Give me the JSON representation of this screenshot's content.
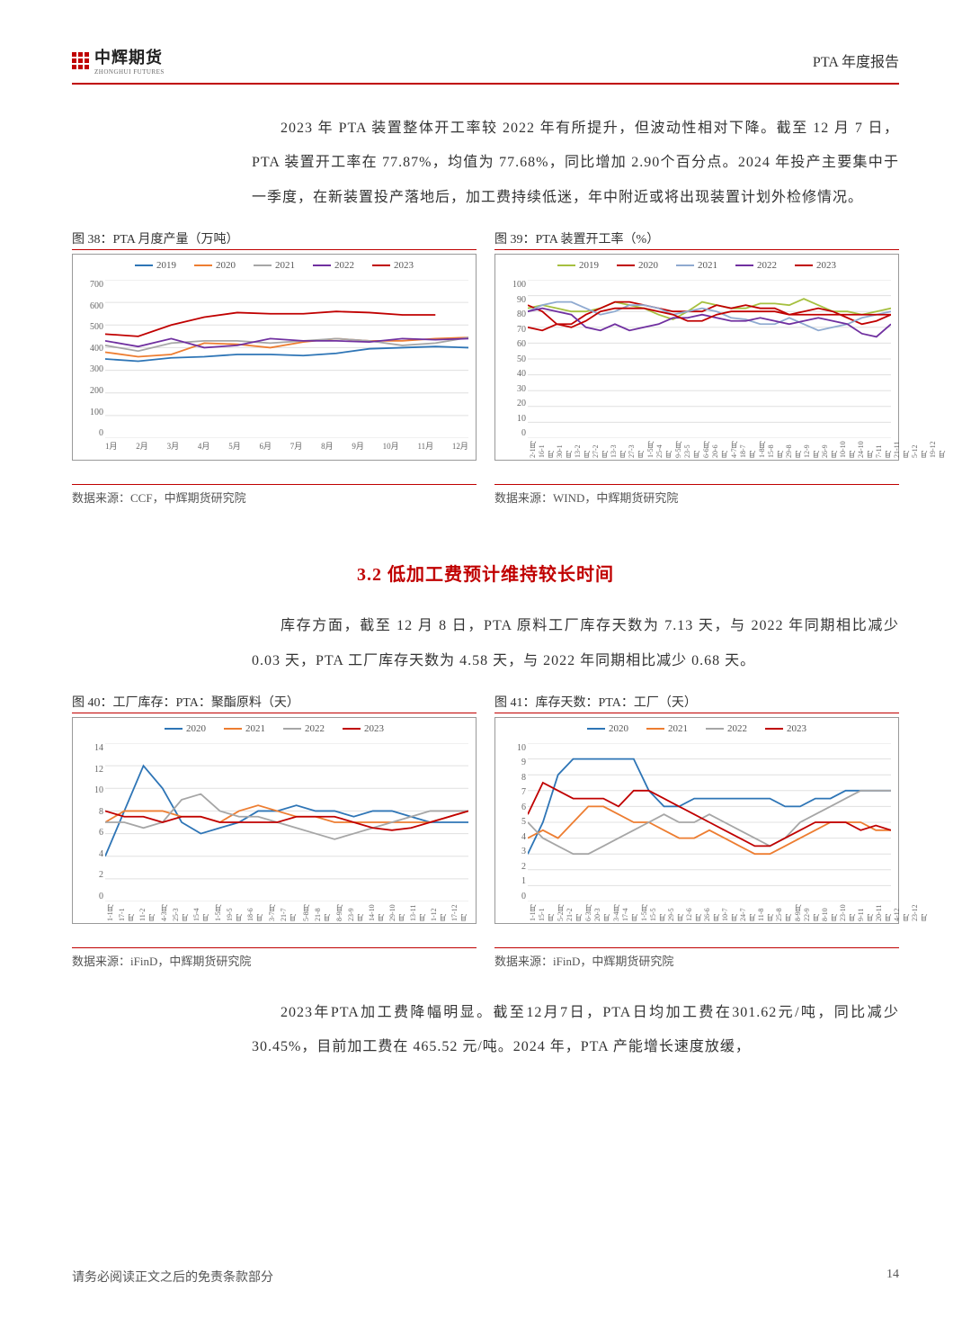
{
  "header": {
    "logo_cn": "中辉期货",
    "logo_en": "ZHONGHUI FUTURES",
    "doc_title": "PTA 年度报告"
  },
  "para1": "2023 年 PTA 装置整体开工率较 2022 年有所提升，但波动性相对下降。截至 12 月 7 日，PTA 装置开工率在 77.87%，均值为 77.68%，同比增加 2.90个百分点。2024 年投产主要集中于一季度，在新装置投产落地后，加工费持续低迷，年中附近或将出现装置计划外检修情况。",
  "section_heading": "3.2  低加工费预计维持较长时间",
  "para2": "库存方面，截至 12 月 8 日，PTA 原料工厂库存天数为 7.13 天，与 2022 年同期相比减少 0.03 天，PTA 工厂库存天数为 4.58 天，与 2022 年同期相比减少 0.68 天。",
  "para3": "2023年PTA加工费降幅明显。截至12月7日，PTA日均加工费在301.62元/吨，同比减少 30.45%，目前加工费在 465.52 元/吨。2024 年，PTA 产能增长速度放缓，",
  "chart38": {
    "title": "图 38：PTA 月度产量（万吨）",
    "source": "数据来源：CCF，中辉期货研究院",
    "type": "line",
    "legend": [
      "2019",
      "2020",
      "2021",
      "2022",
      "2023"
    ],
    "colors": [
      "#2e75b6",
      "#ed7d31",
      "#a6a6a6",
      "#7030a0",
      "#c00000"
    ],
    "ylim": [
      0,
      700
    ],
    "ytick_step": 100,
    "x_labels": [
      "1月",
      "2月",
      "3月",
      "4月",
      "5月",
      "6月",
      "7月",
      "8月",
      "9月",
      "10月",
      "11月",
      "12月"
    ],
    "series": {
      "2019": [
        350,
        340,
        355,
        360,
        370,
        370,
        365,
        375,
        395,
        400,
        405,
        400
      ],
      "2020": [
        380,
        360,
        370,
        420,
        415,
        400,
        425,
        440,
        430,
        430,
        440,
        445
      ],
      "2021": [
        410,
        385,
        420,
        430,
        430,
        420,
        430,
        440,
        430,
        410,
        420,
        445
      ],
      "2022": [
        430,
        405,
        440,
        400,
        410,
        440,
        430,
        430,
        425,
        440,
        435,
        440
      ],
      "2023": [
        460,
        450,
        500,
        535,
        555,
        550,
        550,
        560,
        555,
        545,
        545,
        null
      ]
    },
    "background_color": "#ffffff",
    "grid_color": "#e0e0e0",
    "label_fontsize": 10
  },
  "chart39": {
    "title": "图 39：PTA 装置开工率（%）",
    "source": "数据来源：WIND，中辉期货研究院",
    "type": "line",
    "legend": [
      "2019",
      "2020",
      "2021",
      "2022",
      "2023"
    ],
    "colors": [
      "#a6c040",
      "#c00000",
      "#8faad0",
      "#7030a0",
      "#c00000"
    ],
    "ylim": [
      0,
      100
    ],
    "ytick_step": 10,
    "x_labels": [
      "2-1月",
      "16-1月",
      "30-1月",
      "13-2月",
      "27-2月",
      "13-3月",
      "27-3月",
      "1-5月",
      "25-4月",
      "9-5月",
      "23-5月",
      "6-6月",
      "20-6月",
      "4-7月",
      "18-7月",
      "1-8月",
      "15-8月",
      "29-8月",
      "12-9月",
      "26-9月",
      "10-10月",
      "24-10月",
      "7-11月",
      "21-11月",
      "5-12月",
      "19-12月"
    ],
    "series": {
      "2019": [
        82,
        84,
        82,
        80,
        80,
        82,
        86,
        84,
        82,
        78,
        75,
        80,
        86,
        84,
        82,
        82,
        85,
        85,
        84,
        88,
        84,
        80,
        80,
        78,
        80,
        82
      ],
      "2020": [
        84,
        80,
        72,
        72,
        78,
        82,
        86,
        86,
        84,
        82,
        80,
        80,
        80,
        84,
        82,
        84,
        82,
        82,
        78,
        80,
        82,
        80,
        76,
        72,
        74,
        78
      ],
      "2021": [
        80,
        84,
        86,
        86,
        82,
        78,
        80,
        84,
        84,
        82,
        78,
        80,
        82,
        80,
        76,
        75,
        72,
        72,
        76,
        72,
        68,
        70,
        72,
        76,
        78,
        80
      ],
      "2022": [
        80,
        82,
        80,
        78,
        70,
        68,
        72,
        68,
        70,
        72,
        76,
        76,
        78,
        76,
        74,
        74,
        76,
        74,
        72,
        74,
        76,
        74,
        72,
        66,
        64,
        72
      ],
      "2023": [
        70,
        68,
        72,
        70,
        74,
        80,
        82,
        82,
        82,
        80,
        78,
        74,
        74,
        78,
        80,
        80,
        80,
        80,
        78,
        78,
        78,
        78,
        78,
        78,
        78,
        78
      ]
    },
    "background_color": "#ffffff",
    "grid_color": "#e0e0e0",
    "label_fontsize": 9
  },
  "chart40": {
    "title": "图 40：工厂库存：PTA：聚酯原料（天）",
    "source": "数据来源：iFinD，中辉期货研究院",
    "type": "line",
    "legend": [
      "2020",
      "2021",
      "2022",
      "2023"
    ],
    "colors": [
      "#2e75b6",
      "#ed7d31",
      "#a6a6a6",
      "#c00000"
    ],
    "ylim": [
      0,
      14
    ],
    "ytick_step": 2,
    "x_labels": [
      "1-1月",
      "17-1月",
      "11-2月",
      "4-3月",
      "25-3月",
      "15-4月",
      "1-5月",
      "19-5月",
      "18-6月",
      "3-7月",
      "21-7月",
      "5-8月",
      "21-8月",
      "8-9月",
      "23-9月",
      "14-10月",
      "29-10月",
      "13-11月",
      "1-12月",
      "17-12月"
    ],
    "series": {
      "2020": [
        4,
        8,
        12,
        10,
        7,
        6,
        6.5,
        7,
        8,
        8,
        8.5,
        8,
        8,
        7.5,
        8,
        8,
        7.5,
        7,
        7,
        7
      ],
      "2021": [
        7,
        8,
        8,
        8,
        7.5,
        7.5,
        7,
        8,
        8.5,
        8,
        7.5,
        7.5,
        7,
        7,
        7,
        7,
        7,
        7,
        7.5,
        8
      ],
      "2022": [
        7,
        7,
        6.5,
        7,
        9,
        9.5,
        8,
        7.5,
        7.5,
        7,
        6.5,
        6,
        5.5,
        6,
        6.5,
        7,
        7.5,
        8,
        8,
        8
      ],
      "2023": [
        8,
        7.5,
        7.5,
        7,
        7.5,
        7.5,
        7,
        7,
        7,
        7,
        7.5,
        7.5,
        7.5,
        7,
        6.5,
        6.3,
        6.5,
        7,
        7.5,
        8
      ]
    },
    "background_color": "#ffffff",
    "grid_color": "#e0e0e0",
    "label_fontsize": 9
  },
  "chart41": {
    "title": "图 41：库存天数：PTA：工厂（天）",
    "source": "数据来源：iFinD，中辉期货研究院",
    "type": "line",
    "legend": [
      "2020",
      "2021",
      "2022",
      "2023"
    ],
    "colors": [
      "#2e75b6",
      "#ed7d31",
      "#a6a6a6",
      "#c00000"
    ],
    "ylim": [
      0,
      10
    ],
    "ytick_step": 1,
    "x_labels": [
      "1-1月",
      "15-1月",
      "5-2月",
      "21-2月",
      "6-3月",
      "20-3月",
      "3-4月",
      "17-4月",
      "1-5月",
      "15-5月",
      "29-5月",
      "12-6月",
      "26-6月",
      "10-7月",
      "24-7月",
      "11-8月",
      "25-8月",
      "8-9月",
      "22-9月",
      "8-10月",
      "23-10月",
      "9-11月",
      "20-11月",
      "4-12月",
      "23-12月"
    ],
    "series": {
      "2020": [
        3,
        5,
        8,
        9,
        9,
        9,
        9,
        9,
        7,
        6,
        6,
        6.5,
        6.5,
        6.5,
        6.5,
        6.5,
        6.5,
        6,
        6,
        6.5,
        6.5,
        7,
        7,
        7,
        7
      ],
      "2021": [
        4,
        4.5,
        4,
        5,
        6,
        6,
        5.5,
        5,
        5,
        4.5,
        4,
        4,
        4.5,
        4,
        3.5,
        3,
        3,
        3.5,
        4,
        4.5,
        5,
        5,
        5,
        4.5,
        4.5
      ],
      "2022": [
        5,
        4,
        3.5,
        3,
        3,
        3.5,
        4,
        4.5,
        5,
        5.5,
        5,
        5,
        5.5,
        5,
        4.5,
        4,
        3.5,
        4,
        5,
        5.5,
        6,
        6.5,
        7,
        7,
        7
      ],
      "2023": [
        5.5,
        7.5,
        7,
        6.5,
        6.5,
        6.5,
        6,
        7,
        7,
        6.5,
        6,
        5.5,
        5,
        4.5,
        4,
        3.5,
        3.5,
        4,
        4.5,
        5,
        5,
        5,
        4.5,
        4.8,
        4.5
      ]
    },
    "background_color": "#ffffff",
    "grid_color": "#e0e0e0",
    "label_fontsize": 9
  },
  "footer": {
    "disclaimer": "请务必阅读正文之后的免责条款部分",
    "page": "14"
  }
}
